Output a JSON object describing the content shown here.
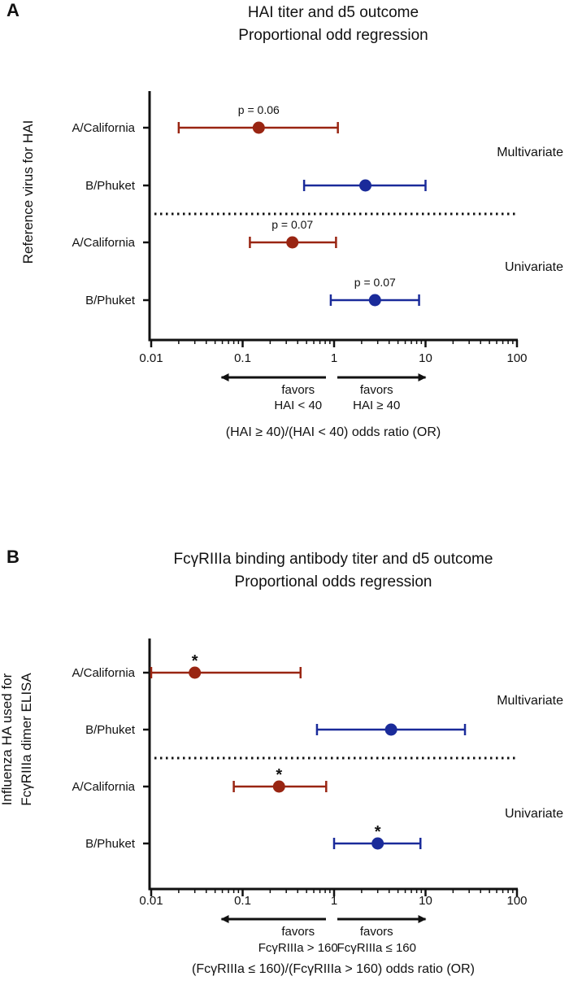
{
  "colors": {
    "red": "#992512",
    "blue": "#1a2b9a",
    "axis": "#111111"
  },
  "chart_data": [
    {
      "type": "scatter",
      "panel": "A",
      "title_lines": [
        "HAI titer and d5 outcome",
        "Proportional odd regression"
      ],
      "ylabel": "Reference virus for HAI",
      "xlabel": "(HAI ≥ 40)/(HAI < 40) odds ratio (OR)",
      "x_scale": "log",
      "xlim": [
        0.01,
        100
      ],
      "x_ticks": [
        {
          "value": 0.01,
          "label": "0.01"
        },
        {
          "value": 0.1,
          "label": "0.1"
        },
        {
          "value": 1,
          "label": "1"
        },
        {
          "value": 10,
          "label": "10"
        },
        {
          "value": 100,
          "label": "100"
        }
      ],
      "arrow_left": [
        "favors",
        "HAI < 40"
      ],
      "arrow_right": [
        "favors",
        "HAI ≥ 40"
      ],
      "groups": [
        {
          "label": "Multivariate",
          "rows": [
            {
              "category": "A/California",
              "or": 0.15,
              "ci": [
                0.02,
                1.1
              ],
              "color": "#992512",
              "annotation": "p = 0.06"
            },
            {
              "category": "B/Phuket",
              "or": 2.2,
              "ci": [
                0.47,
                10
              ],
              "color": "#1a2b9a",
              "annotation": ""
            }
          ]
        },
        {
          "label": "Univariate",
          "rows": [
            {
              "category": "A/California",
              "or": 0.35,
              "ci": [
                0.12,
                1.05
              ],
              "color": "#992512",
              "annotation": "p = 0.07"
            },
            {
              "category": "B/Phuket",
              "or": 2.8,
              "ci": [
                0.92,
                8.5
              ],
              "color": "#1a2b9a",
              "annotation": "p = 0.07"
            }
          ]
        }
      ]
    },
    {
      "type": "scatter",
      "panel": "B",
      "title_lines": [
        "FcγRIIIa binding antibody titer and d5 outcome",
        "Proportional odds regression"
      ],
      "ylabel_lines": [
        "Influenza HA used for",
        "FcγRIIIa dimer ELISA"
      ],
      "xlabel": "(FcγRIIIa ≤ 160)/(FcγRIIIa > 160) odds ratio (OR)",
      "x_scale": "log",
      "xlim": [
        0.01,
        100
      ],
      "x_ticks": [
        {
          "value": 0.01,
          "label": "0.01"
        },
        {
          "value": 0.1,
          "label": "0.1"
        },
        {
          "value": 1,
          "label": "1"
        },
        {
          "value": 10,
          "label": "10"
        },
        {
          "value": 100,
          "label": "100"
        }
      ],
      "arrow_left": [
        "favors",
        "FcγRIIIa > 160"
      ],
      "arrow_right": [
        "favors",
        "FcγRIIIa ≤ 160"
      ],
      "groups": [
        {
          "label": "Multivariate",
          "rows": [
            {
              "category": "A/California",
              "or": 0.03,
              "ci": [
                0.01,
                0.43
              ],
              "color": "#992512",
              "annotation": "*"
            },
            {
              "category": "B/Phuket",
              "or": 4.2,
              "ci": [
                0.65,
                27
              ],
              "color": "#1a2b9a",
              "annotation": ""
            }
          ]
        },
        {
          "label": "Univariate",
          "rows": [
            {
              "category": "A/California",
              "or": 0.25,
              "ci": [
                0.08,
                0.82
              ],
              "color": "#992512",
              "annotation": "*"
            },
            {
              "category": "B/Phuket",
              "or": 3.0,
              "ci": [
                1.0,
                8.8
              ],
              "color": "#1a2b9a",
              "annotation": "*"
            }
          ]
        }
      ]
    }
  ]
}
